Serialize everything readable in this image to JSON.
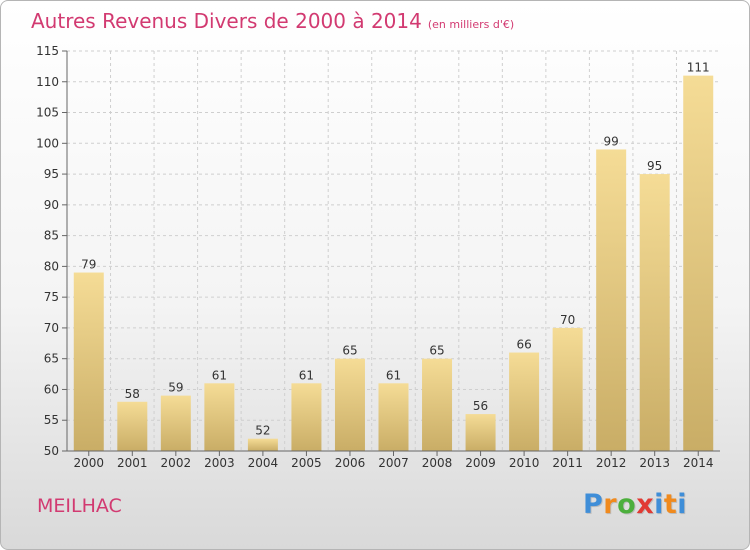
{
  "title": "Autres Revenus Divers de 2000 à 2014",
  "subtitle": "(en milliers d'€)",
  "town": "MEILHAC",
  "logo": {
    "letters": [
      "P",
      "r",
      "o",
      "x",
      "i",
      "t",
      "i"
    ],
    "colors": [
      "#3f8ed8",
      "#f08a1d",
      "#4caf3c",
      "#e13a33",
      "#3f8ed8",
      "#f08a1d",
      "#3f8ed8"
    ]
  },
  "colors": {
    "title": "#d23a71",
    "bar_light": "#f5dc96",
    "bar_dark": "#c9ad66"
  },
  "chart_data": {
    "type": "bar",
    "categories": [
      "2000",
      "2001",
      "2002",
      "2003",
      "2004",
      "2005",
      "2006",
      "2007",
      "2008",
      "2009",
      "2010",
      "2011",
      "2012",
      "2013",
      "2014"
    ],
    "values": [
      79,
      58,
      59,
      61,
      52,
      61,
      65,
      61,
      65,
      56,
      66,
      70,
      99,
      95,
      111
    ],
    "ylim": [
      50,
      115
    ],
    "yticks": [
      50,
      55,
      60,
      65,
      70,
      75,
      80,
      85,
      90,
      95,
      100,
      105,
      110,
      115
    ],
    "grid": true,
    "data_labels": true
  }
}
